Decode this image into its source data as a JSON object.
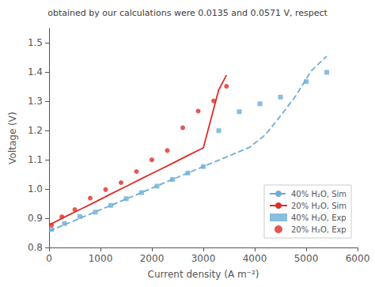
{
  "chart_data": {
    "type": "line",
    "title": "obtained by our calculations were 0.0135 and 0.0571 V, respect",
    "xlabel": "Current density (A m⁻²)",
    "ylabel": "Voltage (V)",
    "xlim": [
      0,
      6000
    ],
    "ylim": [
      0.8,
      1.55
    ],
    "xticks": [
      0,
      1000,
      2000,
      3000,
      4000,
      5000,
      6000
    ],
    "yticks": [
      0.8,
      0.9,
      {
        "value": 1.0,
        "label": "1.0"
      },
      1.1,
      1.2,
      1.3,
      1.4,
      1.5
    ],
    "grid": false,
    "legend": "lower right",
    "series": [
      {
        "name": "40% H₂O, Sim",
        "type": "line",
        "color": "#6baed6",
        "line_style": "dashed",
        "x": [
          0,
          300,
          600,
          900,
          1200,
          1500,
          1800,
          2100,
          2400,
          2700,
          3000,
          3300,
          3600,
          3900,
          4200,
          4500,
          4800,
          5100,
          5400
        ],
        "values": [
          0.856,
          0.878,
          0.9,
          0.922,
          0.944,
          0.966,
          0.988,
          1.011,
          1.033,
          1.055,
          1.077,
          1.099,
          1.121,
          1.143,
          1.185,
          1.25,
          1.32,
          1.405,
          1.455
        ]
      },
      {
        "name": "20% H₂O, Sim",
        "type": "line",
        "color": "#de2d26",
        "line_style": "solid",
        "x": [
          0,
          300,
          600,
          900,
          1200,
          1500,
          1800,
          2100,
          2400,
          2700,
          3000,
          3300,
          3450
        ],
        "values": [
          0.877,
          0.904,
          0.93,
          0.956,
          0.983,
          1.009,
          1.036,
          1.062,
          1.088,
          1.115,
          1.141,
          1.34,
          1.39
        ]
      },
      {
        "name": "40% H₂O, Exp",
        "type": "scatter",
        "color": "#6baed6",
        "marker": "square",
        "x": [
          50,
          300,
          600,
          900,
          1200,
          1500,
          1800,
          2100,
          2400,
          2700,
          3000,
          3300,
          3700,
          4100,
          4500,
          5000,
          5400
        ],
        "values": [
          0.862,
          0.882,
          0.906,
          0.921,
          0.944,
          0.967,
          0.988,
          1.01,
          1.033,
          1.055,
          1.077,
          1.2,
          1.265,
          1.292,
          1.315,
          1.368,
          1.4
        ]
      },
      {
        "name": "20% H₂O, Exp",
        "type": "scatter",
        "color": "#de2d26",
        "marker": "circle",
        "x": [
          50,
          250,
          500,
          800,
          1100,
          1400,
          1700,
          2000,
          2300,
          2600,
          2900,
          3200,
          3450
        ],
        "values": [
          0.877,
          0.905,
          0.93,
          0.969,
          0.998,
          1.022,
          1.06,
          1.1,
          1.132,
          1.21,
          1.267,
          1.302,
          1.352
        ]
      }
    ]
  }
}
